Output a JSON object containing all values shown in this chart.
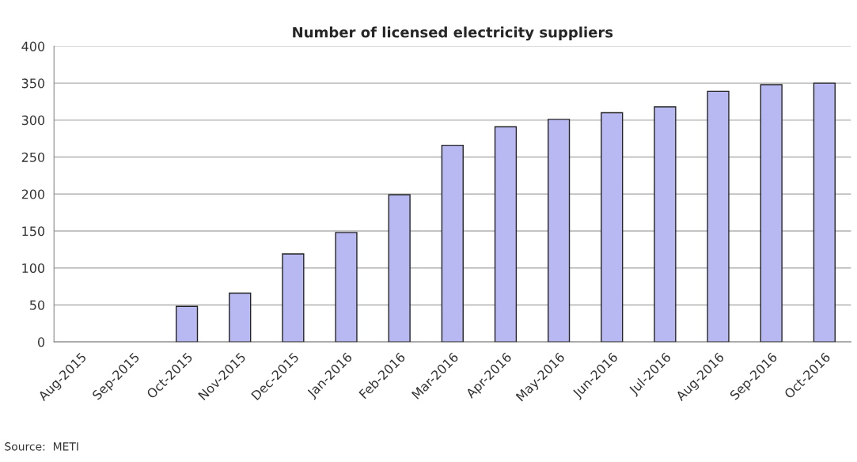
{
  "chart_data": {
    "type": "bar",
    "title": "Number of licensed electricity suppliers",
    "categories": [
      "Aug-2015",
      "Sep-2015",
      "Oct-2015",
      "Nov-2015",
      "Dec-2015",
      "Jan-2016",
      "Feb-2016",
      "Mar-2016",
      "Apr-2016",
      "May-2016",
      "Jun-2016",
      "Jul-2016",
      "Aug-2016",
      "Sep-2016",
      "Oct-2016"
    ],
    "values": [
      null,
      null,
      48,
      66,
      119,
      148,
      199,
      266,
      291,
      301,
      310,
      318,
      339,
      348,
      350
    ],
    "color": "#b8b8f2",
    "ylim": [
      0,
      400
    ],
    "yticks": [
      0,
      50,
      100,
      150,
      200,
      250,
      300,
      350,
      400
    ],
    "grid": "y",
    "legend": false,
    "annotations": [
      "Source:  METI"
    ]
  }
}
